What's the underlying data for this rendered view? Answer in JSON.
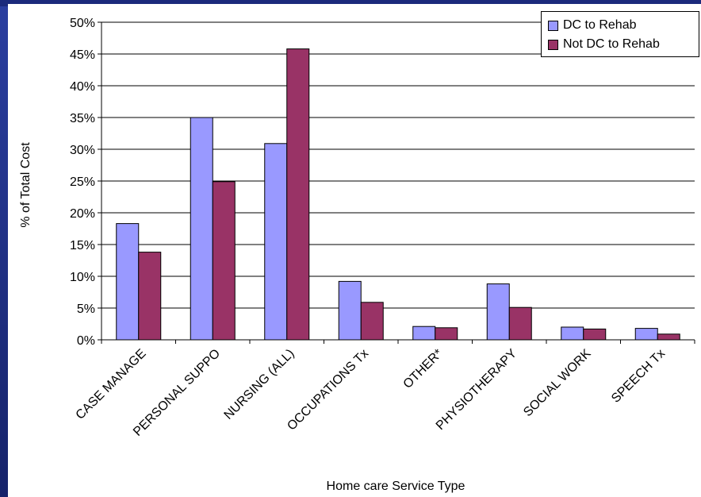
{
  "slide": {
    "title_fragment": ""
  },
  "chart_data": {
    "type": "bar",
    "title": "",
    "xlabel": "Home care Service Type",
    "ylabel": "% of Total Cost",
    "ylim": [
      0,
      50
    ],
    "yticks": [
      "0%",
      "5%",
      "10%",
      "15%",
      "20%",
      "25%",
      "30%",
      "35%",
      "40%",
      "45%",
      "50%"
    ],
    "categories": [
      "CASE MANAGE",
      "PERSONAL SUPPO",
      "NURSING (ALL)",
      "OCCUPATIONS Tx",
      "OTHER*",
      "PHYSIOTHERAPY",
      "SOCIAL WORK",
      "SPEECH Tx"
    ],
    "series": [
      {
        "name": "DC to Rehab",
        "values": [
          18.3,
          35.0,
          30.9,
          9.2,
          2.1,
          8.8,
          2.0,
          1.8
        ]
      },
      {
        "name": "Not DC to Rehab",
        "values": [
          13.8,
          24.9,
          45.8,
          5.9,
          1.9,
          5.1,
          1.7,
          0.9
        ]
      }
    ],
    "colors": {
      "DC to Rehab": "#9999ff",
      "Not DC to Rehab": "#993366"
    },
    "grid": true,
    "legend_position": "top-right"
  }
}
